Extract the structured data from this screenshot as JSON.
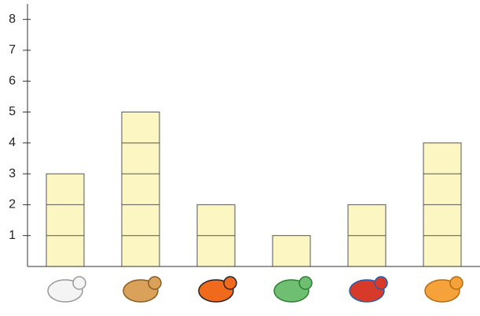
{
  "chart_data": {
    "type": "bar",
    "categories": [
      null,
      null,
      null,
      null,
      null,
      null
    ],
    "values": [
      3,
      5,
      2,
      1,
      2,
      4
    ],
    "color": "#fcf6c2",
    "ylim": [
      0,
      8.5
    ],
    "yticks": [
      1,
      2,
      3,
      4,
      5,
      6,
      7,
      8
    ]
  }
}
